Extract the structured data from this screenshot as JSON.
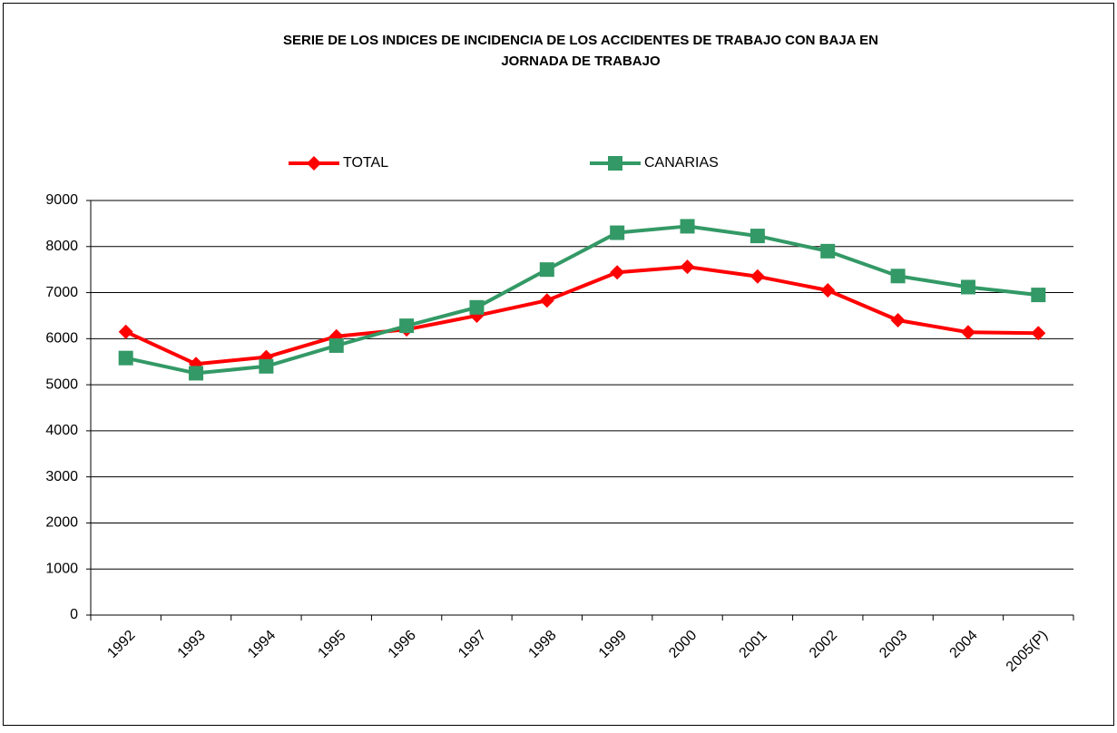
{
  "chart_data": {
    "type": "line",
    "title": [
      "SERIE DE LOS INDICES DE INCIDENCIA DE LOS ACCIDENTES DE TRABAJO CON BAJA EN",
      "JORNADA DE TRABAJO"
    ],
    "categories": [
      "1992",
      "1993",
      "1994",
      "1995",
      "1996",
      "1997",
      "1998",
      "1999",
      "2000",
      "2001",
      "2002",
      "2003",
      "2004",
      "2005(P)"
    ],
    "series": [
      {
        "name": "TOTAL",
        "color": "#ff0000",
        "marker": "diamond",
        "values": [
          6150,
          5450,
          5600,
          6050,
          6200,
          6500,
          6830,
          7440,
          7560,
          7350,
          7050,
          6400,
          6140,
          6120
        ]
      },
      {
        "name": "CANARIAS",
        "color": "#339966",
        "marker": "square",
        "values": [
          5580,
          5250,
          5400,
          5850,
          6280,
          6680,
          7500,
          8300,
          8440,
          8230,
          7900,
          7360,
          7120,
          6950
        ]
      }
    ],
    "ylim": [
      0,
      9000
    ],
    "yticks": [
      0,
      1000,
      2000,
      3000,
      4000,
      5000,
      6000,
      7000,
      8000,
      9000
    ],
    "grid": true,
    "legend": "top"
  }
}
